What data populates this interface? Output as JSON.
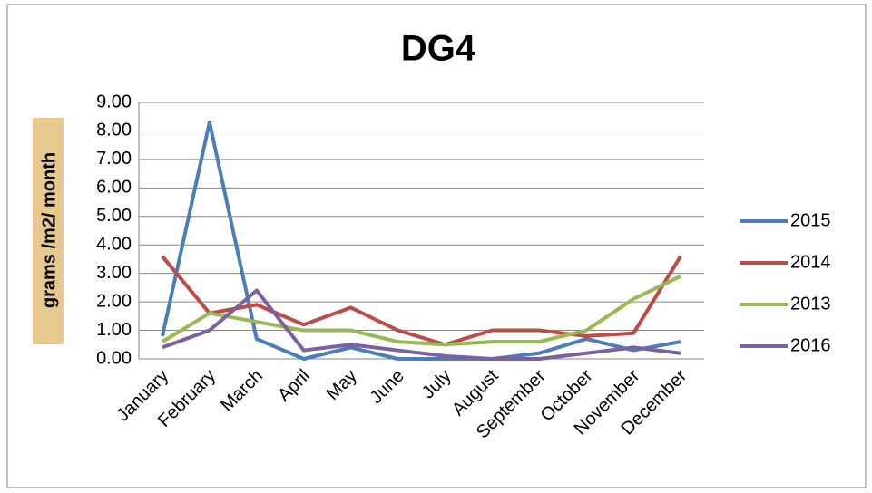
{
  "chart_data": {
    "type": "line",
    "title": "DG4",
    "y_label": "grams /m2/ month",
    "categories": [
      "January",
      "February",
      "March",
      "April",
      "May",
      "June",
      "July",
      "August",
      "September",
      "October",
      "November",
      "December"
    ],
    "series": [
      {
        "name": "2015",
        "color": "#4a7ebb",
        "values": [
          0.8,
          8.3,
          0.7,
          0.0,
          0.4,
          0.0,
          0.0,
          0.0,
          0.2,
          0.7,
          0.3,
          0.6
        ]
      },
      {
        "name": "2014",
        "color": "#be4b48",
        "values": [
          3.6,
          1.6,
          1.9,
          1.2,
          1.8,
          1.0,
          0.5,
          1.0,
          1.0,
          0.8,
          0.9,
          3.6
        ]
      },
      {
        "name": "2013",
        "color": "#98b954",
        "values": [
          0.6,
          1.6,
          1.3,
          1.0,
          1.0,
          0.6,
          0.5,
          0.6,
          0.6,
          1.0,
          2.1,
          2.9
        ]
      },
      {
        "name": "2016",
        "color": "#7d60a0",
        "values": [
          0.4,
          1.0,
          2.4,
          0.3,
          0.5,
          0.3,
          0.1,
          0.0,
          0.0,
          0.2,
          0.4,
          0.2
        ]
      }
    ],
    "ylim": [
      0,
      9
    ],
    "yticks": [
      {
        "value": 0,
        "label": "0.00"
      },
      {
        "value": 1,
        "label": "1.00"
      },
      {
        "value": 2,
        "label": "2.00"
      },
      {
        "value": 3,
        "label": "3.00"
      },
      {
        "value": 4,
        "label": "4.00"
      },
      {
        "value": 5,
        "label": "5.00"
      },
      {
        "value": 6,
        "label": "6.00"
      },
      {
        "value": 7,
        "label": "7.00"
      },
      {
        "value": 8,
        "label": "8.00"
      },
      {
        "value": 9,
        "label": "9.00"
      }
    ],
    "grid": true,
    "legend": "right"
  }
}
